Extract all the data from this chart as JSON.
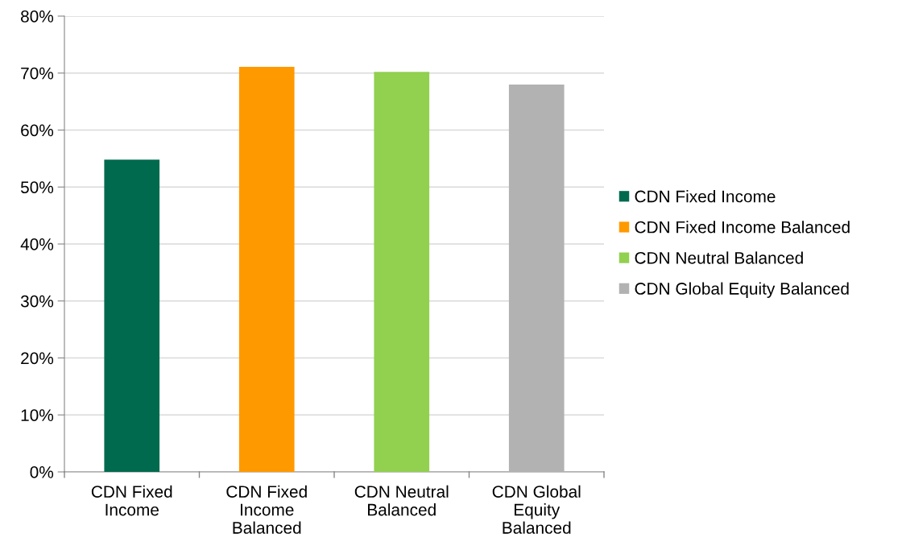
{
  "chart_data": {
    "type": "bar",
    "categories": [
      "CDN Fixed Income",
      "CDN Fixed Income Balanced",
      "CDN Neutral Balanced",
      "CDN Global Equity Balanced"
    ],
    "series": [
      {
        "name": "CDN Fixed Income",
        "color": "#006a4e",
        "values": [
          54.8,
          null,
          null,
          null
        ]
      },
      {
        "name": "CDN Fixed Income Balanced",
        "color": "#ff9900",
        "values": [
          null,
          71.1,
          null,
          null
        ]
      },
      {
        "name": "CDN Neutral Balanced",
        "color": "#92d050",
        "values": [
          null,
          null,
          70.2,
          null
        ]
      },
      {
        "name": "CDN Global Equity Balanced",
        "color": "#b2b2b2",
        "values": [
          null,
          null,
          null,
          68.0
        ]
      }
    ],
    "ylim": [
      0,
      80
    ],
    "yticks": [
      {
        "value": 0,
        "label": "0%"
      },
      {
        "value": 10,
        "label": "10%"
      },
      {
        "value": 20,
        "label": "20%"
      },
      {
        "value": 30,
        "label": "30%"
      },
      {
        "value": 40,
        "label": "40%"
      },
      {
        "value": 50,
        "label": "50%"
      },
      {
        "value": 60,
        "label": "60%"
      },
      {
        "value": 70,
        "label": "70%"
      },
      {
        "value": 80,
        "label": "80%"
      }
    ],
    "grid": "y",
    "legend": "right"
  }
}
